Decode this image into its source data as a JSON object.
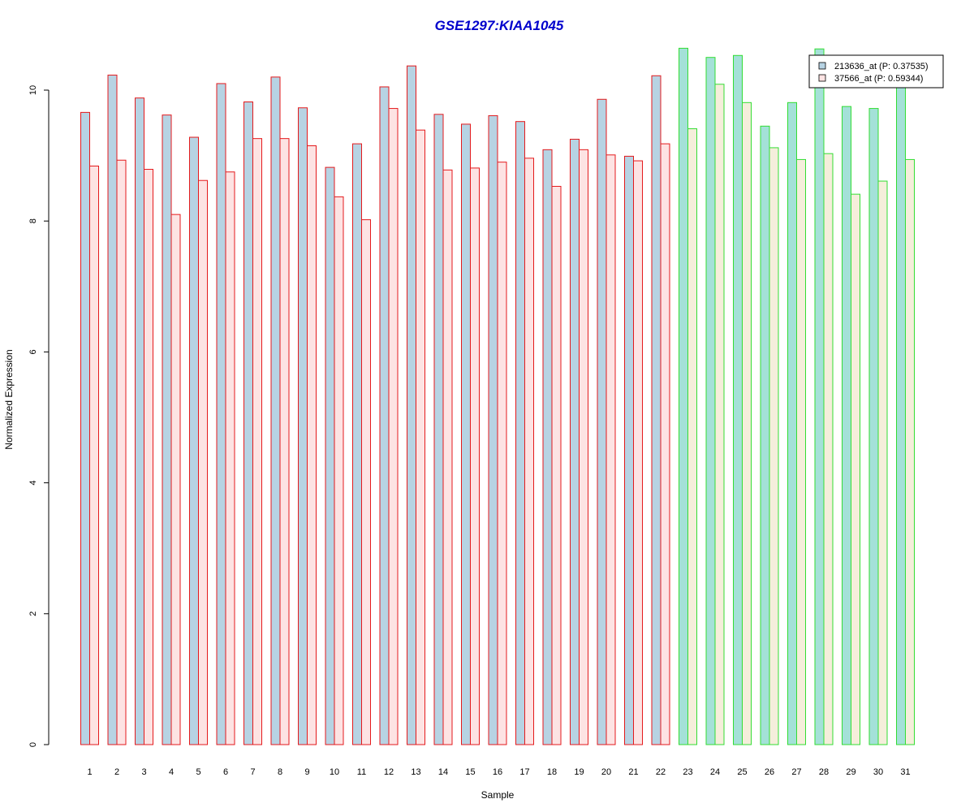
{
  "chart_data": {
    "type": "bar",
    "title": "GSE1297:KIAA1045",
    "xlabel": "Sample",
    "ylabel": "Normalized Expression",
    "ylim": [
      0,
      10.6
    ],
    "yticks": [
      0,
      2,
      4,
      6,
      8,
      10
    ],
    "categories": [
      "1",
      "2",
      "3",
      "4",
      "5",
      "6",
      "7",
      "8",
      "9",
      "10",
      "11",
      "12",
      "13",
      "14",
      "15",
      "16",
      "17",
      "18",
      "19",
      "20",
      "21",
      "22",
      "23",
      "24",
      "25",
      "26",
      "27",
      "28",
      "29",
      "30",
      "31"
    ],
    "group_count_red": 22,
    "colors": {
      "title": "#0000cc",
      "series1_fill": "#b7d3e3",
      "series2_fill_red_group": "#fde3e3",
      "series1_fill_green_group": "#a4e1d8",
      "series2_fill_green_group": "#f5eedb",
      "red_group_border": "#e41a1c",
      "green_group_border": "#33dd33"
    },
    "legend": {
      "position": "top-right"
    },
    "series": [
      {
        "name": "213636_at (P: 0.37535)",
        "values": [
          9.66,
          10.23,
          9.88,
          9.62,
          9.28,
          10.1,
          9.82,
          10.2,
          9.73,
          8.82,
          9.18,
          10.05,
          10.37,
          9.63,
          9.48,
          9.61,
          9.52,
          9.09,
          9.25,
          9.86,
          8.99,
          10.22,
          10.64,
          10.5,
          10.53,
          9.45,
          9.81,
          10.63,
          9.75,
          9.72,
          10.1
        ]
      },
      {
        "name": "37566_at (P: 0.59344)",
        "values": [
          8.84,
          8.93,
          8.79,
          8.1,
          8.62,
          8.75,
          9.26,
          9.26,
          9.15,
          8.37,
          8.02,
          9.72,
          9.39,
          8.78,
          8.81,
          8.9,
          8.96,
          8.53,
          9.09,
          9.01,
          8.92,
          9.18,
          9.41,
          10.09,
          9.81,
          9.12,
          8.94,
          9.03,
          8.41,
          8.61,
          8.94
        ]
      }
    ]
  }
}
